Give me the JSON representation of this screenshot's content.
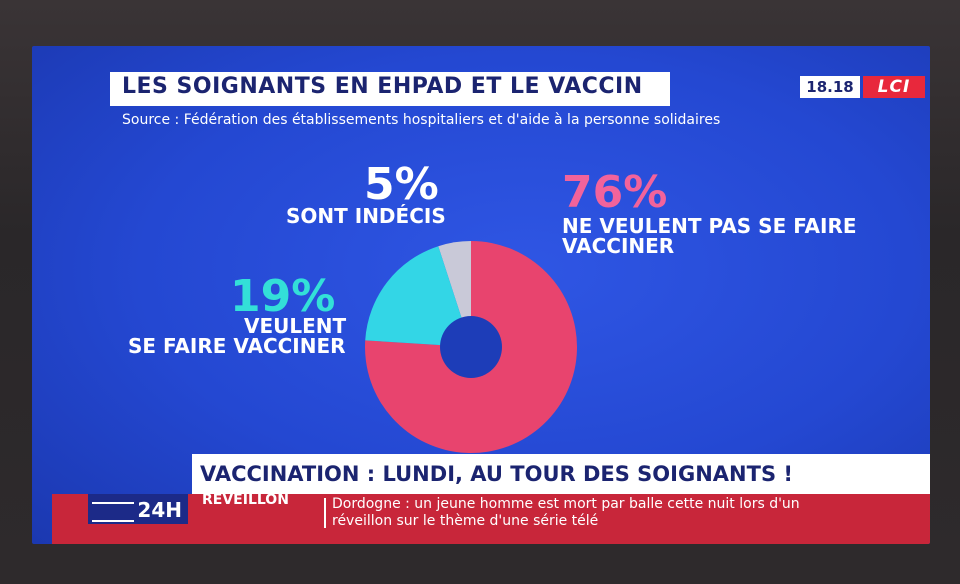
{
  "title": "LES SOIGNANTS EN EHPAD ET LE VACCIN",
  "source": "Source : Fédération des établissements hospitaliers et d'aide à la personne solidaires",
  "clock": "18.18",
  "channel": "LCI",
  "chart_data": {
    "type": "pie",
    "donut": true,
    "title": "LES SOIGNANTS EN EHPAD ET LE VACCIN",
    "slices": [
      {
        "label_lines": [
          "SONT INDÉCIS"
        ],
        "value": 5,
        "display": "5%",
        "color": "#c9c9d8"
      },
      {
        "label_lines": [
          "NE VEULENT PAS SE FAIRE",
          "VACCINER"
        ],
        "value": 76,
        "display": "76%",
        "color": "#e8446e"
      },
      {
        "label_lines": [
          "VEULENT",
          "SE FAIRE VACCINER"
        ],
        "value": 19,
        "display": "19%",
        "color": "#33d6e6"
      }
    ]
  },
  "headline": "VACCINATION : LUNDI, AU TOUR DES SOIGNANTS !",
  "ticker": {
    "tag": "24H",
    "rubric": "RÉVEILLON",
    "lines": [
      "Dordogne : un jeune homme est mort par balle cette nuit lors d'un",
      "réveillon sur le thème d'une série télé"
    ]
  },
  "colors": {
    "background": "#2448d2",
    "banner_text": "#1b2470",
    "accent_red": "#e8283c",
    "ticker_red": "#c8263a"
  }
}
